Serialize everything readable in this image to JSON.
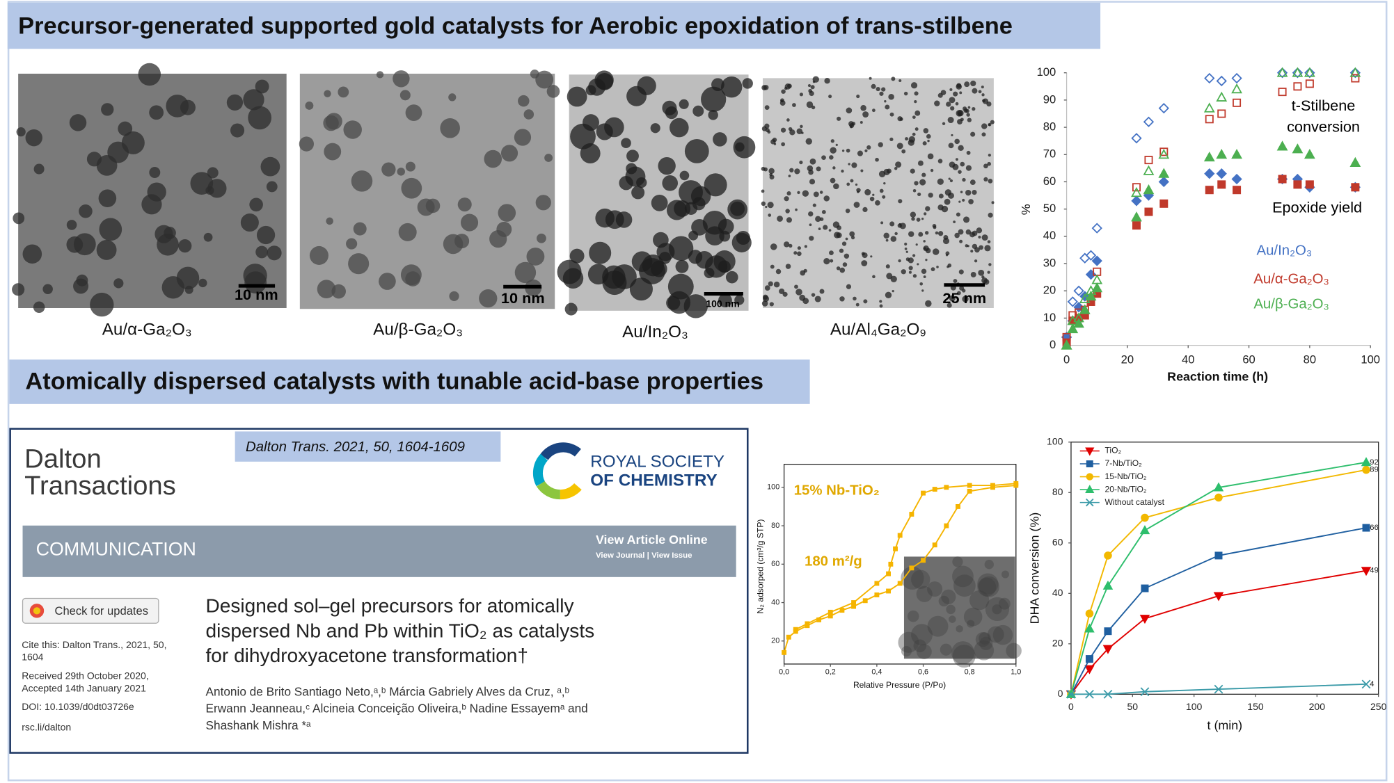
{
  "header": {
    "title": "Precursor-generated supported gold catalysts for Aerobic epoxidation of trans-stilbene"
  },
  "tem_images": [
    {
      "caption": "Au/α-Ga₂O₃",
      "scale": "10 nm"
    },
    {
      "caption": "Au/β-Ga₂O₃",
      "scale": "10 nm"
    },
    {
      "caption": "Au/In₂O₃",
      "scale": "100 nm"
    },
    {
      "caption": "Au/Al₄Ga₂O₉",
      "scale": "25 nm"
    }
  ],
  "section2": {
    "title": "Atomically dispersed catalysts with tunable acid-base properties"
  },
  "article": {
    "journal": [
      "Dalton",
      "Transactions"
    ],
    "citation": "Dalton Trans. 2021, 50, 1604-1609",
    "publisher": [
      "ROYAL SOCIETY",
      "OF CHEMISTRY"
    ],
    "banner": "COMMUNICATION",
    "view_online": "View Article Online",
    "view_links": "View Journal | View Issue",
    "check_updates": "Check for updates",
    "meta": [
      "Cite this: Dalton Trans., 2021, 50,",
      "1604",
      "Received 29th October 2020,",
      "Accepted 14th January 2021",
      "DOI: 10.1039/d0dt03726e",
      "rsc.li/dalton"
    ],
    "title": [
      "Designed sol–gel precursors for atomically",
      "dispersed Nb and Pb within TiO₂ as catalysts",
      "for dihydroxyacetone transformation†"
    ],
    "authors": [
      "Antonio de Brito Santiago Neto,ᵃ,ᵇ Márcia Gabriely Alves da Cruz, ᵃ,ᵇ",
      "Erwann Jeanneau,ᶜ Alcineia Conceição Oliveira,ᵇ Nadine Essayemᵃ and",
      "Shashank Mishra *ᵃ"
    ]
  },
  "chart_data": [
    {
      "type": "scatter",
      "xlabel": "Reaction time (h)",
      "ylabel": "%",
      "annotations": [
        "t-Stilbene",
        "conversion",
        "Epoxide yield"
      ],
      "x": [
        0,
        2,
        4,
        6,
        8,
        10,
        23,
        27,
        32,
        47,
        51,
        56,
        71,
        76,
        80,
        95
      ],
      "xlim": [
        0,
        100
      ],
      "xticks": [
        0,
        20,
        40,
        60,
        80,
        100
      ],
      "ylim": [
        0,
        100
      ],
      "yticks": [
        0,
        10,
        20,
        30,
        40,
        50,
        60,
        70,
        80,
        90,
        100
      ],
      "series": [
        {
          "name": "Au/In₂O₃",
          "color": "#4472c4",
          "marker": "diamond",
          "conversion": [
            3,
            16,
            20,
            32,
            33,
            43,
            76,
            82,
            87,
            98,
            97,
            98,
            100,
            100,
            100,
            100
          ],
          "yield": [
            3,
            9,
            14,
            18,
            26,
            31,
            53,
            55,
            60,
            63,
            63,
            61,
            61,
            61,
            58,
            58
          ]
        },
        {
          "name": "Au/α-Ga₂O₃",
          "color": "#c0392b",
          "marker": "square",
          "conversion": [
            3,
            11,
            12,
            13,
            16,
            27,
            58,
            68,
            71,
            83,
            85,
            89,
            93,
            95,
            96,
            98
          ],
          "yield": [
            1,
            9,
            10,
            11,
            16,
            19,
            44,
            49,
            52,
            57,
            59,
            57,
            61,
            59,
            59,
            58
          ]
        },
        {
          "name": "Au/β-Ga₂O₃",
          "color": "#4caf50",
          "marker": "triangle",
          "conversion": [
            0,
            9,
            10,
            17,
            20,
            24,
            56,
            64,
            70,
            87,
            91,
            94,
            100,
            100,
            100,
            100
          ],
          "yield": [
            0,
            6,
            8,
            13,
            18,
            21,
            47,
            57,
            63,
            69,
            70,
            70,
            73,
            72,
            70,
            67
          ]
        }
      ]
    },
    {
      "type": "line",
      "xlabel": "Relative Pressure (P/Po)",
      "ylabel": "N₂ adsorped (cm³/g STP)",
      "annotations": [
        "15% Nb-TiO₂",
        "180  m²/g"
      ],
      "color": "#f5b400",
      "xlim": [
        0,
        1
      ],
      "xticks": [
        {
          "value": 0,
          "label": "0,0"
        },
        {
          "value": 0.2,
          "label": "0,2"
        },
        {
          "value": 0.4,
          "label": "0,4"
        },
        {
          "value": 0.6,
          "label": "0,6"
        },
        {
          "value": 0.8,
          "label": "0,8"
        },
        {
          "value": 1,
          "label": "1,0"
        }
      ],
      "ylim": [
        8,
        112
      ],
      "yticks": [
        20,
        40,
        60,
        80,
        100
      ],
      "series": [
        {
          "x": [
            0,
            0.02,
            0.05,
            0.1,
            0.15,
            0.2,
            0.25,
            0.3,
            0.35,
            0.4,
            0.45,
            0.5,
            0.55,
            0.6,
            0.65,
            0.7,
            0.75,
            0.8,
            0.9,
            1.0
          ],
          "values": [
            14,
            22,
            25,
            28,
            31,
            33,
            36,
            38,
            41,
            44,
            46,
            50,
            58,
            62,
            70,
            80,
            90,
            98,
            100,
            101
          ]
        },
        {
          "x": [
            1.0,
            0.9,
            0.8,
            0.7,
            0.65,
            0.6,
            0.55,
            0.5,
            0.48,
            0.46,
            0.45,
            0.4,
            0.3,
            0.2,
            0.1,
            0.05
          ],
          "values": [
            102,
            101,
            101,
            100,
            99,
            97,
            86,
            75,
            68,
            60,
            55,
            50,
            40,
            35,
            29,
            26
          ]
        }
      ]
    },
    {
      "type": "line",
      "xlabel": "t (min)",
      "ylabel": "DHA conversion (%)",
      "x": [
        0,
        15,
        30,
        60,
        120,
        240
      ],
      "xlim": [
        0,
        250
      ],
      "xticks": [
        0,
        50,
        100,
        150,
        200,
        250
      ],
      "ylim": [
        0,
        100
      ],
      "yticks": [
        0,
        20,
        40,
        60,
        80,
        100
      ],
      "legend": "upper left",
      "end_labels": true,
      "series": [
        {
          "name": "TiO₂",
          "color": "#e00000",
          "marker": "triangle-down",
          "values": [
            0,
            10,
            18,
            30,
            39,
            49
          ]
        },
        {
          "name": "7-Nb/TiO₂",
          "color": "#1f5fa0",
          "marker": "square",
          "values": [
            0,
            14,
            25,
            42,
            55,
            66
          ]
        },
        {
          "name": "15-Nb/TiO₂",
          "color": "#f2b800",
          "marker": "circle",
          "values": [
            0,
            32,
            55,
            70,
            78,
            89
          ]
        },
        {
          "name": "20-Nb/TiO₂",
          "color": "#2dbe6c",
          "marker": "triangle",
          "values": [
            0,
            26,
            43,
            65,
            82,
            92
          ]
        },
        {
          "name": "Without catalyst",
          "color": "#3a9aa8",
          "marker": "x",
          "values": [
            0,
            0,
            0,
            1,
            2,
            4
          ]
        }
      ]
    }
  ]
}
